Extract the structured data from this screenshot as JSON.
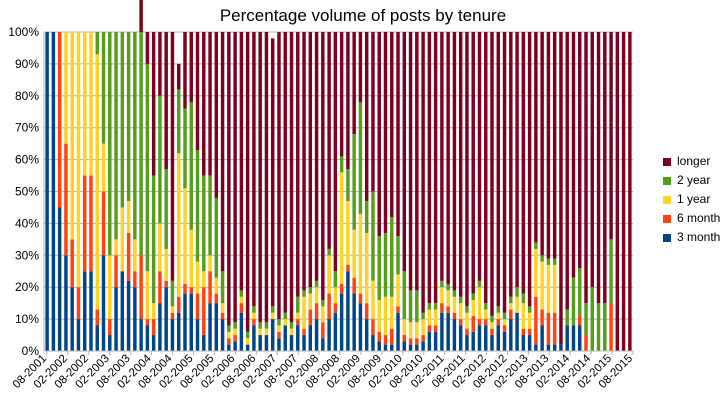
{
  "chart_data": {
    "type": "bar",
    "stacked": true,
    "normalized": true,
    "title": "Percentage volume of posts by tenure",
    "xlabel": "",
    "ylabel": "",
    "ylim": [
      0,
      100
    ],
    "yticks": [
      "0%",
      "10%",
      "20%",
      "30%",
      "40%",
      "50%",
      "60%",
      "70%",
      "80%",
      "90%",
      "100%"
    ],
    "xticks": [
      "08-2001",
      "02-2002",
      "08-2002",
      "02-2003",
      "08-2003",
      "02-2004",
      "08-2004",
      "02-2005",
      "08-2005",
      "02-2006",
      "08-2006",
      "02-2007",
      "08-2007",
      "02-2008",
      "08-2008",
      "02-2009",
      "08-2009",
      "02-2010",
      "08-2010",
      "02-2011",
      "08-2011",
      "02-2012",
      "08-2012",
      "02-2013",
      "08-2013",
      "02-2014",
      "08-2014",
      "02-2015",
      "08-2015"
    ],
    "grid": true,
    "legend_position": "right",
    "colors": {
      "3 month": "#004586",
      "6 month": "#ff420e",
      "1 year": "#ffd320",
      "2 year": "#579d1c",
      "longer": "#7e0021"
    },
    "series": [
      {
        "name": "3 month",
        "values": [
          100,
          100,
          45,
          30,
          20,
          10,
          25,
          25,
          8,
          30,
          5,
          20,
          25,
          22,
          20,
          10,
          8,
          5,
          15,
          20,
          10,
          12,
          18,
          18,
          10,
          5,
          15,
          15,
          10,
          2,
          3,
          12,
          2,
          8,
          5,
          5,
          10,
          4,
          8,
          5,
          8,
          5,
          8,
          10,
          4,
          10,
          12,
          18,
          25,
          18,
          15,
          10,
          5,
          3,
          2,
          2,
          12,
          3,
          2,
          2,
          3,
          6,
          6,
          12,
          12,
          10,
          8,
          5,
          6,
          8,
          8,
          5,
          8,
          6,
          10,
          12,
          5,
          5,
          2,
          8,
          2,
          2,
          2,
          8,
          8,
          8,
          0,
          0,
          0,
          0,
          0,
          0,
          0,
          0
        ]
      },
      {
        "name": "6 month",
        "values": [
          0,
          0,
          55,
          35,
          15,
          10,
          30,
          30,
          5,
          20,
          5,
          10,
          0,
          15,
          5,
          20,
          2,
          5,
          10,
          2,
          2,
          5,
          3,
          2,
          8,
          15,
          10,
          3,
          2,
          2,
          2,
          3,
          0,
          2,
          0,
          0,
          0,
          2,
          0,
          0,
          2,
          2,
          5,
          5,
          5,
          8,
          3,
          3,
          2,
          5,
          3,
          5,
          5,
          3,
          3,
          5,
          2,
          2,
          2,
          2,
          2,
          2,
          2,
          3,
          2,
          2,
          2,
          2,
          5,
          2,
          2,
          2,
          2,
          2,
          3,
          0,
          2,
          2,
          15,
          5,
          10,
          10,
          0,
          0,
          0,
          3,
          5,
          0,
          0,
          0,
          15,
          0,
          0,
          0
        ]
      },
      {
        "name": "1 year",
        "values": [
          0,
          0,
          0,
          35,
          65,
          80,
          45,
          45,
          80,
          15,
          20,
          5,
          20,
          10,
          10,
          0,
          15,
          5,
          15,
          10,
          2,
          45,
          30,
          18,
          10,
          5,
          5,
          5,
          3,
          2,
          2,
          2,
          2,
          2,
          2,
          2,
          2,
          2,
          2,
          2,
          2,
          10,
          5,
          5,
          5,
          12,
          5,
          35,
          20,
          15,
          25,
          22,
          12,
          10,
          12,
          10,
          10,
          5,
          5,
          5,
          5,
          5,
          5,
          5,
          5,
          5,
          5,
          5,
          5,
          10,
          3,
          2,
          2,
          2,
          2,
          5,
          8,
          5,
          15,
          15,
          15,
          15,
          0,
          0,
          0,
          0,
          0,
          0,
          0,
          0,
          0,
          0,
          0,
          0
        ]
      },
      {
        "name": "2 year",
        "values": [
          0,
          0,
          0,
          0,
          0,
          0,
          0,
          0,
          7,
          35,
          70,
          65,
          55,
          53,
          65,
          70,
          65,
          40,
          40,
          25,
          8,
          20,
          25,
          40,
          35,
          30,
          25,
          25,
          10,
          2,
          2,
          2,
          2,
          2,
          2,
          2,
          2,
          2,
          2,
          2,
          5,
          2,
          2,
          2,
          2,
          2,
          5,
          5,
          10,
          30,
          35,
          10,
          28,
          20,
          20,
          25,
          12,
          15,
          10,
          10,
          2,
          2,
          2,
          2,
          2,
          2,
          2,
          2,
          2,
          2,
          2,
          2,
          2,
          2,
          2,
          3,
          3,
          2,
          2,
          2,
          2,
          2,
          0,
          5,
          15,
          15,
          10,
          20,
          15,
          15,
          20,
          0,
          0,
          0
        ]
      },
      {
        "name": "longer",
        "values": [
          0,
          0,
          0,
          0,
          0,
          0,
          0,
          0,
          0,
          0,
          0,
          0,
          0,
          0,
          0,
          40,
          10,
          45,
          20,
          43,
          78,
          8,
          24,
          22,
          37,
          45,
          45,
          52,
          75,
          92,
          91,
          81,
          94,
          86,
          91,
          91,
          84,
          90,
          88,
          91,
          83,
          81,
          80,
          78,
          84,
          68,
          75,
          39,
          43,
          32,
          22,
          53,
          50,
          64,
          63,
          58,
          64,
          75,
          81,
          81,
          88,
          85,
          85,
          78,
          79,
          81,
          83,
          86,
          82,
          78,
          85,
          89,
          86,
          88,
          83,
          80,
          82,
          86,
          66,
          70,
          71,
          71,
          98,
          87,
          77,
          74,
          85,
          80,
          85,
          85,
          65,
          100,
          100,
          100
        ]
      }
    ]
  },
  "legend": [
    {
      "label": "longer",
      "color": "#7e0021"
    },
    {
      "label": "2 year",
      "color": "#579d1c"
    },
    {
      "label": "1 year",
      "color": "#ffd320"
    },
    {
      "label": "6 month",
      "color": "#ff420e"
    },
    {
      "label": "3 month",
      "color": "#004586"
    }
  ]
}
